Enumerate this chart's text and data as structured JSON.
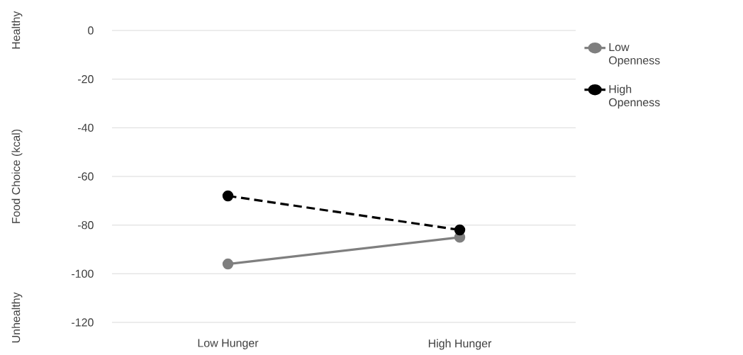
{
  "chart_data": {
    "type": "line",
    "ylabel": "Food Choice (kcal)",
    "annotations": [
      "Healthy",
      "Unhealthy"
    ],
    "categories": [
      "Low Hunger",
      "High Hunger"
    ],
    "series": [
      {
        "name": "Low Openness",
        "color": "#7f7f7f",
        "values": [
          -96,
          -85
        ],
        "line_style": "solid"
      },
      {
        "name": "High Openness",
        "color": "#000000",
        "values": [
          -68,
          -82
        ],
        "line_style": "dashed"
      }
    ],
    "ylim": [
      -120,
      0
    ],
    "yticks": [
      -120,
      -100,
      -80,
      -60,
      -40,
      -20,
      0
    ],
    "grid": "y",
    "legend": "right",
    "marker": "circle"
  }
}
